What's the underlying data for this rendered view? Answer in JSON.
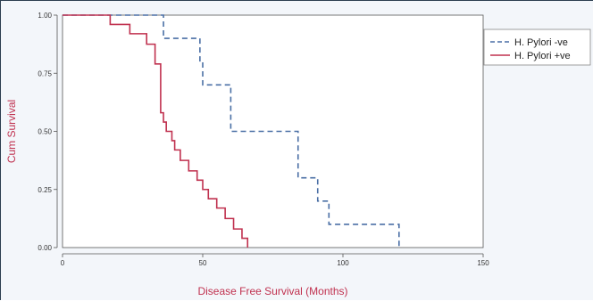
{
  "chart_data": {
    "type": "line",
    "title": "",
    "xlabel": "Disease Free Survival (Months)",
    "ylabel": "Cum Survival",
    "xlim": [
      0,
      150
    ],
    "ylim": [
      0,
      1
    ],
    "x_ticks": [
      0,
      50,
      100,
      150
    ],
    "x_tick_labels": [
      "0",
      "50",
      "100",
      "150"
    ],
    "y_ticks": [
      0,
      0.25,
      0.5,
      0.75,
      1
    ],
    "y_tick_labels": [
      "0.00",
      "0.25",
      "0.50",
      "0.75",
      "1.00"
    ],
    "grid": false,
    "legend_position": "top-right",
    "series": [
      {
        "name": "H. Pylori -ve",
        "color": "#4a6fa5",
        "style": "dashed",
        "x": [
          0,
          36,
          49,
          50,
          60,
          84,
          91,
          95,
          120
        ],
        "y": [
          1.0,
          0.9,
          0.8,
          0.7,
          0.5,
          0.3,
          0.2,
          0.1,
          0.0
        ]
      },
      {
        "name": "H. Pylori +ve",
        "color": "#c0314f",
        "style": "solid",
        "x": [
          0,
          17,
          24,
          30,
          33,
          35,
          36,
          37,
          39,
          40,
          42,
          43,
          45,
          48,
          50,
          52,
          55,
          58,
          61,
          64,
          66
        ],
        "y": [
          1.0,
          0.96,
          0.92,
          0.875,
          0.79,
          0.58,
          0.54,
          0.5,
          0.46,
          0.42,
          0.375,
          0.375,
          0.33,
          0.29,
          0.25,
          0.21,
          0.17,
          0.125,
          0.08,
          0.04,
          0.0
        ]
      }
    ]
  }
}
